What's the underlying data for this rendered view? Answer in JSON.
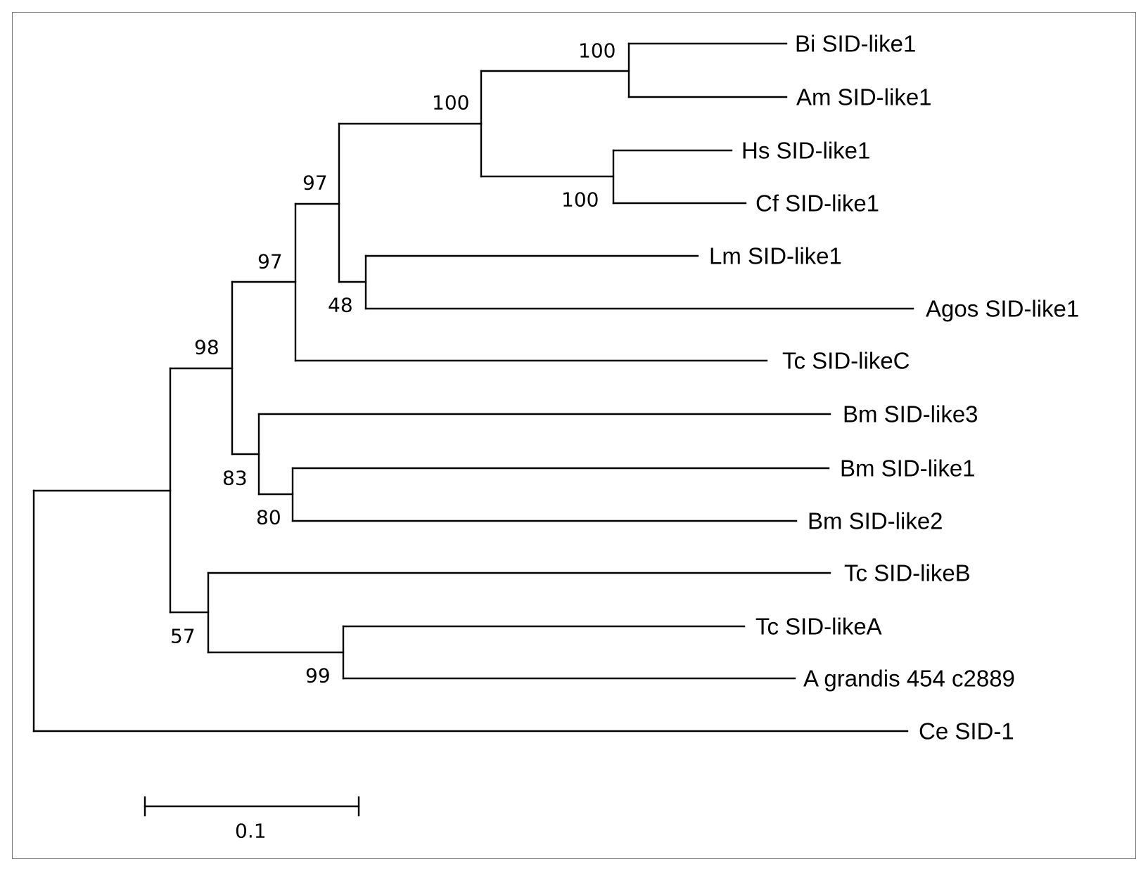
{
  "figure": {
    "scale_bar_label": "0.1"
  },
  "taxa": [
    "Bi SID-like1",
    "Am SID-like1",
    "Hs SID-like1",
    "Cf SID-like1",
    "Lm SID-like1",
    "Agos SID-like1",
    "Tc SID-likeC",
    "Bm SID-like3",
    "Bm SID-like1",
    "Bm SID-like2",
    "Tc SID-likeB",
    "Tc SID-likeA",
    "A grandis 454 c2889",
    "Ce SID-1"
  ],
  "support_values": {
    "bi_am": "100",
    "bi_am_hs_cf": "100",
    "hs_cf": "100",
    "lm_agos": "48",
    "clade_97_inner": "97",
    "clade_97_outer": "97",
    "clade_98": "98",
    "bm_clade": "83",
    "bm1_bm2": "80",
    "clade_57": "57",
    "tca_agrandis": "99"
  },
  "colors": {
    "branch": "#000000",
    "frame": "#7a7a7a",
    "background": "#ffffff"
  }
}
